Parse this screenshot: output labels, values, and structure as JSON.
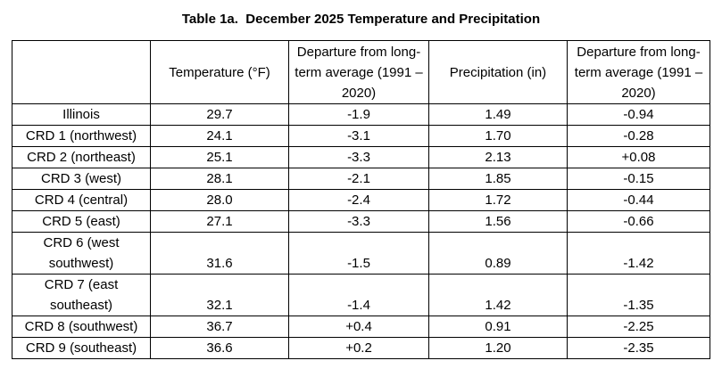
{
  "title": "Table 1a.  December 2025 Temperature and Precipitation",
  "table": {
    "columns": [
      "",
      "Temperature (°F)",
      "Departure from long-term average (1991 – 2020)",
      "Precipitation (in)",
      "Departure from long-term average (1991 – 2020)"
    ],
    "rows": [
      {
        "label": "Illinois",
        "temp": "29.7",
        "temp_dep": "-1.9",
        "precip": "1.49",
        "precip_dep": "-0.94"
      },
      {
        "label": "CRD 1 (northwest)",
        "temp": "24.1",
        "temp_dep": "-3.1",
        "precip": "1.70",
        "precip_dep": "-0.28"
      },
      {
        "label": "CRD 2 (northeast)",
        "temp": "25.1",
        "temp_dep": "-3.3",
        "precip": "2.13",
        "precip_dep": "+0.08"
      },
      {
        "label": "CRD 3 (west)",
        "temp": "28.1",
        "temp_dep": "-2.1",
        "precip": "1.85",
        "precip_dep": "-0.15"
      },
      {
        "label": "CRD 4 (central)",
        "temp": "28.0",
        "temp_dep": "-2.4",
        "precip": "1.72",
        "precip_dep": "-0.44"
      },
      {
        "label": "CRD 5 (east)",
        "temp": "27.1",
        "temp_dep": "-3.3",
        "precip": "1.56",
        "precip_dep": "-0.66"
      },
      {
        "label": "CRD 6 (west southwest)",
        "temp": "31.6",
        "temp_dep": "-1.5",
        "precip": "0.89",
        "precip_dep": "-1.42"
      },
      {
        "label": "CRD 7 (east southeast)",
        "temp": "32.1",
        "temp_dep": "-1.4",
        "precip": "1.42",
        "precip_dep": "-1.35"
      },
      {
        "label": "CRD 8 (southwest)",
        "temp": "36.7",
        "temp_dep": "+0.4",
        "precip": "0.91",
        "precip_dep": "-2.25"
      },
      {
        "label": "CRD 9 (southeast)",
        "temp": "36.6",
        "temp_dep": "+0.2",
        "precip": "1.20",
        "precip_dep": "-2.35"
      }
    ]
  }
}
